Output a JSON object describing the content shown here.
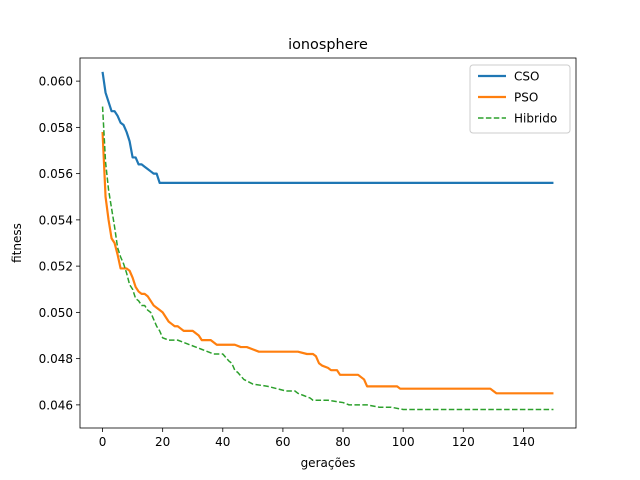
{
  "chart_data": {
    "type": "line",
    "title": "ionosphere",
    "xlabel": "gerações",
    "ylabel": "fitness",
    "xlim": [
      -7.5,
      157.5
    ],
    "ylim": [
      0.045,
      0.061
    ],
    "xticks": [
      0,
      20,
      40,
      60,
      80,
      100,
      120,
      140
    ],
    "yticks": [
      0.046,
      0.048,
      0.05,
      0.052,
      0.054,
      0.056,
      0.058,
      0.06
    ],
    "xtick_labels": [
      "0",
      "20",
      "40",
      "60",
      "80",
      "100",
      "120",
      "140"
    ],
    "ytick_labels": [
      "0.046",
      "0.048",
      "0.050",
      "0.052",
      "0.054",
      "0.056",
      "0.058",
      "0.060"
    ],
    "grid": false,
    "legend_position": "top-right",
    "series": [
      {
        "name": "CSO",
        "color": "#1f77b4",
        "style": "solid",
        "x": [
          0,
          1,
          2,
          3,
          4,
          5,
          6,
          7,
          8,
          9,
          10,
          11,
          12,
          13,
          14,
          15,
          16,
          17,
          18,
          19,
          20,
          150
        ],
        "y": [
          0.0604,
          0.0595,
          0.0591,
          0.0587,
          0.0587,
          0.0585,
          0.0582,
          0.0581,
          0.0578,
          0.0574,
          0.0567,
          0.0567,
          0.0564,
          0.0564,
          0.0563,
          0.0562,
          0.0561,
          0.056,
          0.056,
          0.0556,
          0.0556,
          0.0556
        ]
      },
      {
        "name": "PSO",
        "color": "#ff7f0e",
        "style": "solid",
        "x": [
          0,
          1,
          2,
          3,
          4,
          5,
          6,
          7,
          8,
          9,
          10,
          11,
          12,
          13,
          14,
          15,
          16,
          17,
          18,
          19,
          20,
          21,
          22,
          23,
          24,
          25,
          26,
          27,
          28,
          30,
          32,
          33,
          35,
          36,
          38,
          40,
          42,
          44,
          46,
          48,
          50,
          52,
          55,
          60,
          65,
          68,
          70,
          71,
          72,
          73,
          75,
          76,
          78,
          79,
          82,
          85,
          87,
          88,
          92,
          95,
          98,
          99,
          103,
          110,
          120,
          129,
          130,
          131,
          135,
          140,
          150
        ],
        "y": [
          0.0578,
          0.055,
          0.054,
          0.0532,
          0.053,
          0.0525,
          0.0519,
          0.0519,
          0.0519,
          0.0518,
          0.0515,
          0.0511,
          0.0509,
          0.0508,
          0.0508,
          0.0507,
          0.0505,
          0.0503,
          0.0502,
          0.0501,
          0.05,
          0.0498,
          0.0496,
          0.0495,
          0.0494,
          0.0494,
          0.0493,
          0.0492,
          0.0492,
          0.0492,
          0.049,
          0.0488,
          0.0488,
          0.0488,
          0.0486,
          0.0486,
          0.0486,
          0.0486,
          0.0485,
          0.0485,
          0.0484,
          0.0483,
          0.0483,
          0.0483,
          0.0483,
          0.0482,
          0.0482,
          0.0481,
          0.0478,
          0.0477,
          0.0476,
          0.0475,
          0.0475,
          0.0473,
          0.0473,
          0.0473,
          0.0471,
          0.0468,
          0.0468,
          0.0468,
          0.0468,
          0.0467,
          0.0467,
          0.0467,
          0.0467,
          0.0467,
          0.0466,
          0.0465,
          0.0465,
          0.0465,
          0.0465
        ]
      },
      {
        "name": "Hibrido",
        "color": "#2ca02c",
        "style": "dashed",
        "x": [
          0,
          1,
          2,
          3,
          4,
          5,
          6,
          7,
          8,
          9,
          10,
          11,
          12,
          13,
          14,
          15,
          16,
          17,
          18,
          19,
          20,
          22,
          25,
          27,
          29,
          31,
          33,
          35,
          37,
          40,
          42,
          43,
          44,
          45,
          47,
          50,
          55,
          58,
          61,
          64,
          65,
          67,
          69,
          70,
          75,
          80,
          82,
          85,
          88,
          92,
          96,
          100,
          106,
          110,
          120,
          130,
          140,
          150
        ],
        "y": [
          0.0589,
          0.0565,
          0.0553,
          0.0545,
          0.0537,
          0.0528,
          0.0524,
          0.0521,
          0.0517,
          0.0512,
          0.051,
          0.0506,
          0.0505,
          0.0503,
          0.0503,
          0.0501,
          0.05,
          0.0497,
          0.0494,
          0.0492,
          0.0489,
          0.0488,
          0.0488,
          0.0487,
          0.0486,
          0.0485,
          0.0484,
          0.0483,
          0.0482,
          0.0482,
          0.0479,
          0.0478,
          0.0475,
          0.0474,
          0.0471,
          0.0469,
          0.0468,
          0.0467,
          0.0466,
          0.0466,
          0.0465,
          0.0464,
          0.0463,
          0.0462,
          0.0462,
          0.0461,
          0.046,
          0.046,
          0.046,
          0.0459,
          0.0459,
          0.0458,
          0.0458,
          0.0458,
          0.0458,
          0.0458,
          0.0458,
          0.0458
        ]
      }
    ]
  }
}
